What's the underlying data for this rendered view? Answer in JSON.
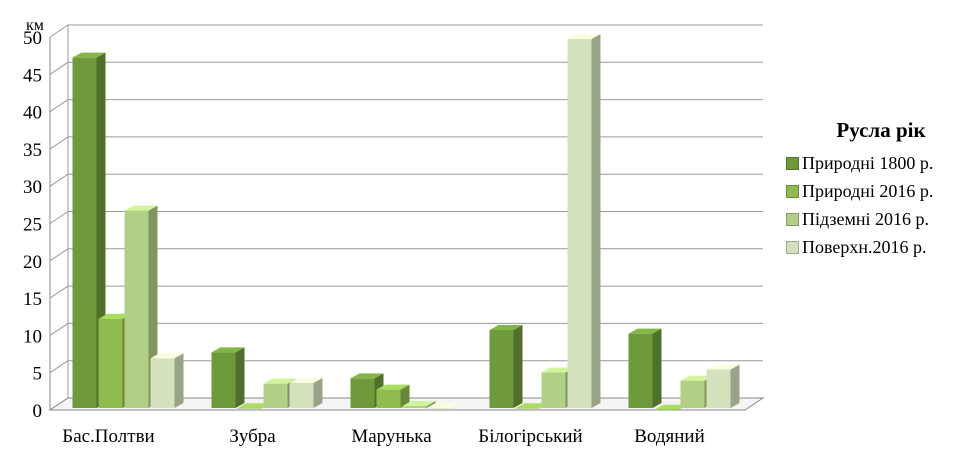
{
  "chart_data": {
    "type": "bar",
    "unit_label": "км",
    "legend_title": "Русла рік",
    "legend_position": "right",
    "categories": [
      "Бас.Полтви",
      "Зубра",
      "Марунька",
      "Білогірський",
      "Водяний"
    ],
    "series": [
      {
        "name": "Природні 1800 р.",
        "color": "#6e9a3c",
        "values": [
          47.5,
          8,
          4.5,
          11,
          10.5
        ]
      },
      {
        "name": "Природні 2016 р.",
        "color": "#8fbb4f",
        "values": [
          12.5,
          0.5,
          3,
          0.5,
          0.3
        ]
      },
      {
        "name": "Підземні 2016 р.",
        "color": "#b2cf85",
        "values": [
          27,
          3.8,
          0.8,
          5.3,
          4.2
        ]
      },
      {
        "name": "Поверхн.2016 р.",
        "color": "#d3e2bc",
        "values": [
          7.2,
          3.9,
          0.5,
          50,
          5.7
        ]
      }
    ],
    "ylim": [
      0,
      50
    ],
    "yticks": [
      0,
      5,
      10,
      15,
      20,
      25,
      30,
      35,
      40,
      45,
      50
    ],
    "grid": true
  }
}
